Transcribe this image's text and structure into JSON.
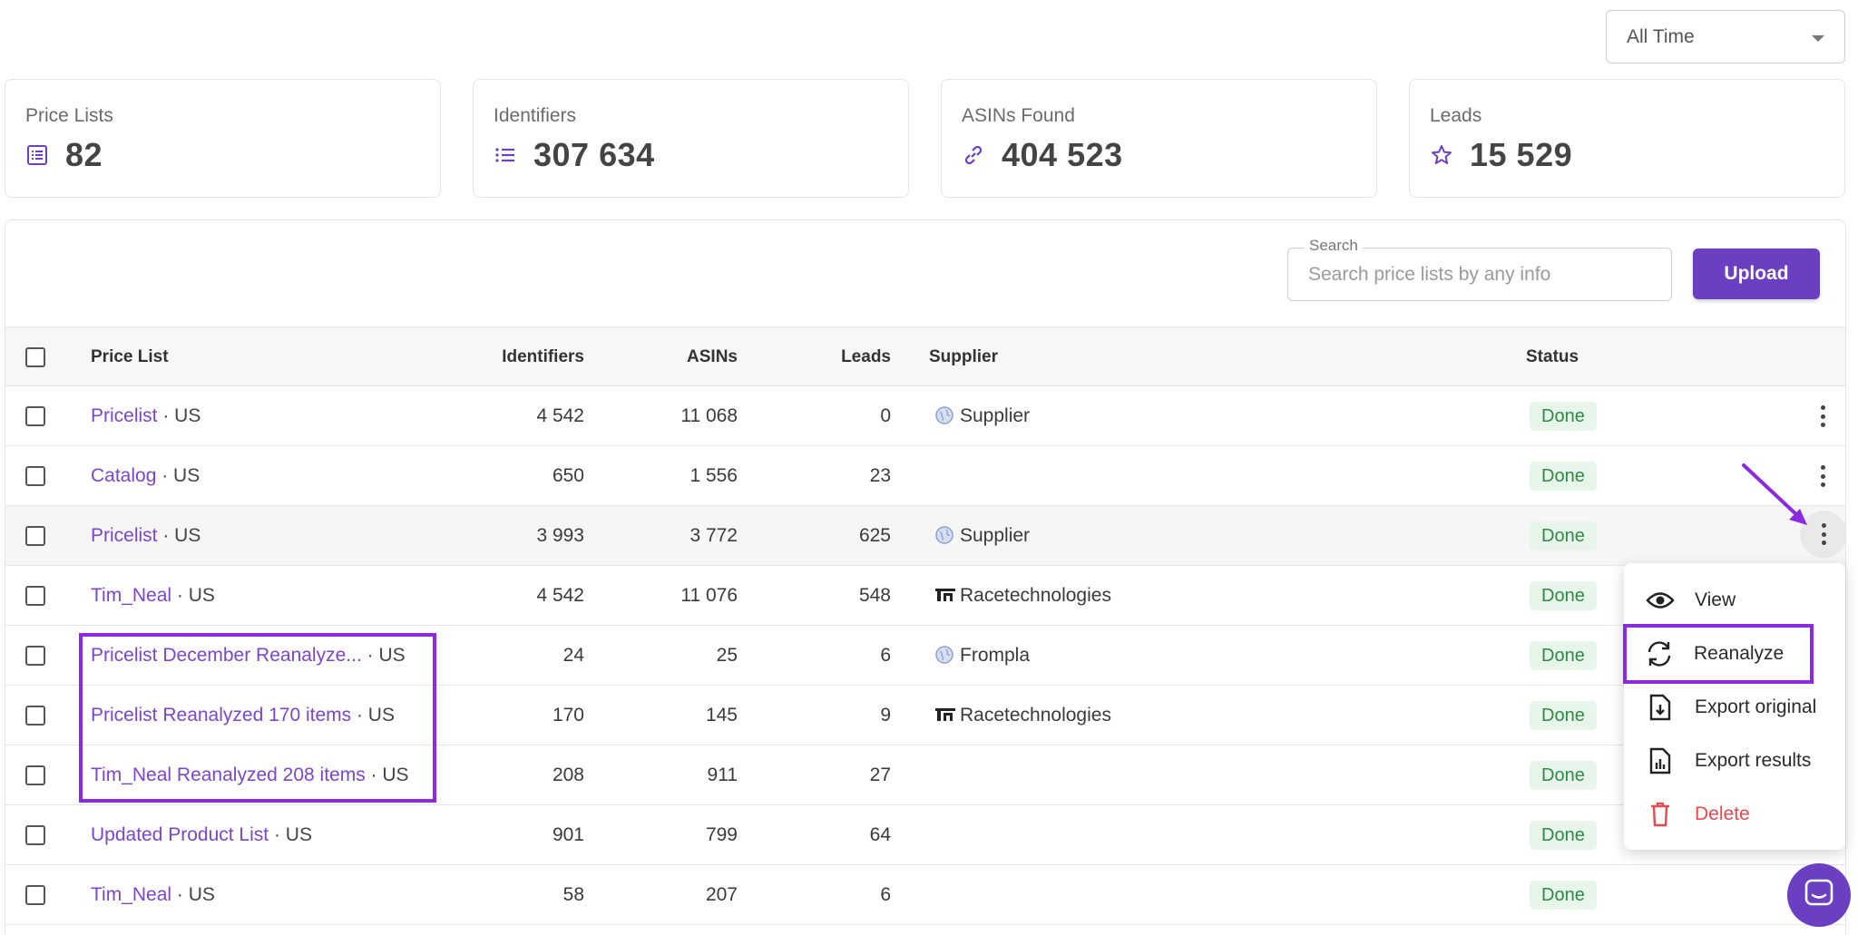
{
  "filter": {
    "time_range": "All Time"
  },
  "stats": [
    {
      "label": "Price Lists",
      "value": "82",
      "icon": "list-alt-icon"
    },
    {
      "label": "Identifiers",
      "value": "307 634",
      "icon": "list-icon"
    },
    {
      "label": "ASINs Found",
      "value": "404 523",
      "icon": "link-icon"
    },
    {
      "label": "Leads",
      "value": "15 529",
      "icon": "star-icon"
    }
  ],
  "search": {
    "legend": "Search",
    "placeholder": "Search price lists by any info"
  },
  "upload_label": "Upload",
  "columns": {
    "price_list": "Price List",
    "identifiers": "Identifiers",
    "asins": "ASINs",
    "leads": "Leads",
    "supplier": "Supplier",
    "status": "Status"
  },
  "rows": [
    {
      "name": "Pricelist",
      "suffix": " · US",
      "identifiers": "4 542",
      "asins": "11 068",
      "leads": "0",
      "supplier": "Supplier",
      "supplier_icon": "globe-icon",
      "status": "Done"
    },
    {
      "name": "Catalog",
      "suffix": " · US",
      "identifiers": "650",
      "asins": "1 556",
      "leads": "23",
      "supplier": "",
      "supplier_icon": "",
      "status": "Done"
    },
    {
      "name": "Pricelist",
      "suffix": " · US",
      "identifiers": "3 993",
      "asins": "3 772",
      "leads": "625",
      "supplier": "Supplier",
      "supplier_icon": "globe-icon",
      "status": "Done"
    },
    {
      "name": "Tim_Neal",
      "suffix": " · US",
      "identifiers": "4 542",
      "asins": "11 076",
      "leads": "548",
      "supplier": "Racetechnologies",
      "supplier_icon": "brand-logo-icon",
      "status": "Done"
    },
    {
      "name": "Pricelist December Reanalyze...",
      "suffix": " · US",
      "identifiers": "24",
      "asins": "25",
      "leads": "6",
      "supplier": "Frompla",
      "supplier_icon": "globe-icon",
      "status": "Done"
    },
    {
      "name": "Pricelist Reanalyzed 170 items",
      "suffix": " · US",
      "identifiers": "170",
      "asins": "145",
      "leads": "9",
      "supplier": "Racetechnologies",
      "supplier_icon": "brand-logo-icon",
      "status": "Done"
    },
    {
      "name": "Tim_Neal Reanalyzed 208 items",
      "suffix": " · US",
      "identifiers": "208",
      "asins": "911",
      "leads": "27",
      "supplier": "",
      "supplier_icon": "",
      "status": "Done"
    },
    {
      "name": "Updated Product List",
      "suffix": " · US",
      "identifiers": "901",
      "asins": "799",
      "leads": "64",
      "supplier": "",
      "supplier_icon": "",
      "status": "Done"
    },
    {
      "name": "Tim_Neal",
      "suffix": " · US",
      "identifiers": "58",
      "asins": "207",
      "leads": "6",
      "supplier": "",
      "supplier_icon": "",
      "status": "Done"
    }
  ],
  "menu": [
    {
      "label": "View",
      "icon": "eye-icon"
    },
    {
      "label": "Reanalyze",
      "icon": "refresh-icon"
    },
    {
      "label": "Export original",
      "icon": "file-download-icon"
    },
    {
      "label": "Export results",
      "icon": "file-chart-icon"
    },
    {
      "label": "Delete",
      "icon": "trash-icon"
    }
  ],
  "colors": {
    "accent": "#6b3fc2",
    "link": "#7a46cc",
    "done_bg": "#e8f5ea",
    "done_text": "#2e8a45",
    "danger": "#e5484d",
    "annotation": "#8a2be2"
  }
}
